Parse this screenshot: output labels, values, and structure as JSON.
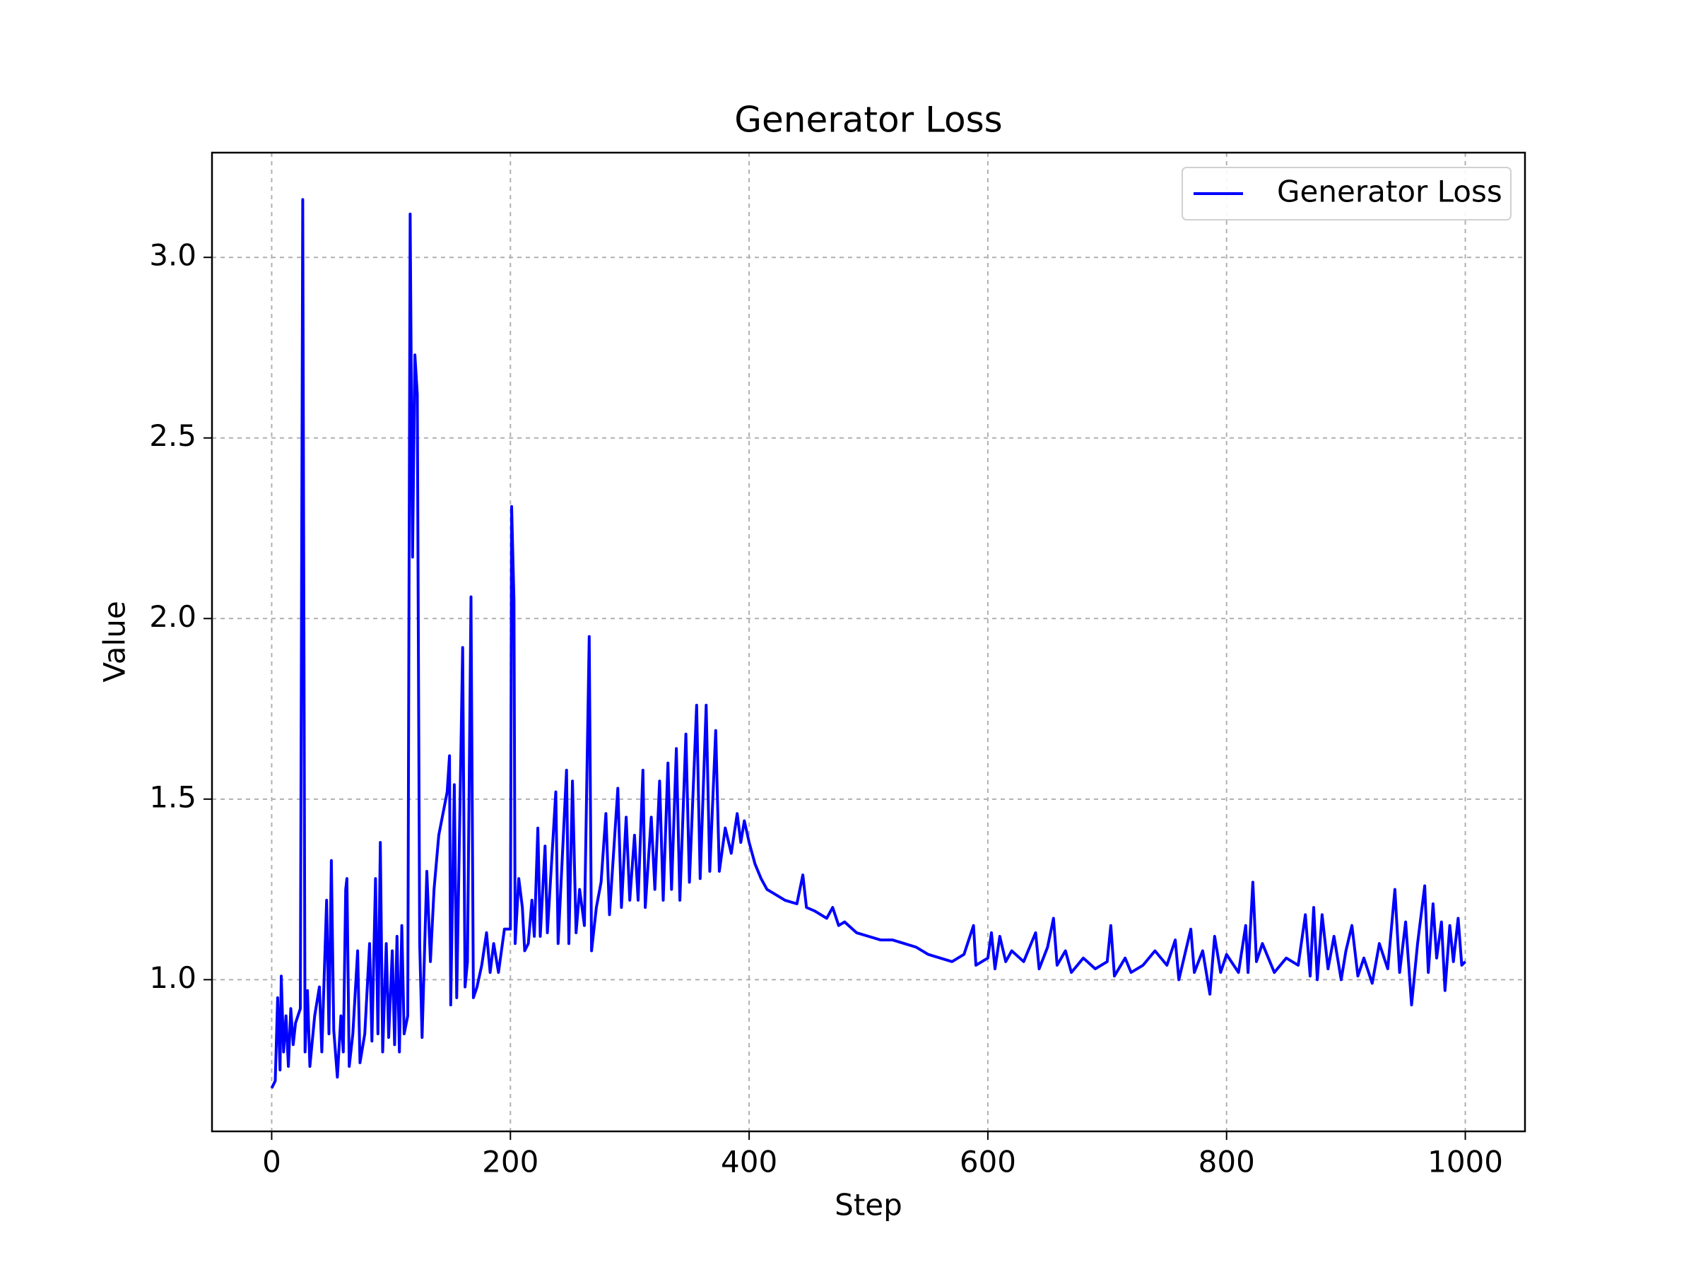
{
  "chart_data": {
    "type": "line",
    "title": "Generator Loss",
    "x_label": "Step",
    "y_label": "Value",
    "x": [
      0,
      3,
      5,
      7,
      8,
      10,
      12,
      14,
      16,
      18,
      20,
      24,
      26,
      28,
      30,
      32,
      36,
      40,
      42,
      46,
      48,
      50,
      52,
      55,
      58,
      60,
      62,
      63,
      65,
      68,
      72,
      74,
      78,
      82,
      84,
      87,
      89,
      91,
      93,
      96,
      98,
      101,
      103,
      105,
      107,
      109,
      111,
      114,
      116,
      118,
      120,
      122,
      124,
      126,
      130,
      133,
      136,
      140,
      147,
      149,
      150,
      153,
      155,
      160,
      162,
      164,
      167,
      169,
      172,
      176,
      180,
      183,
      186,
      190,
      195,
      200,
      201,
      203,
      204,
      207,
      210,
      212,
      215,
      218,
      220,
      223,
      225,
      229,
      231,
      238,
      240,
      247,
      249,
      252,
      255,
      258,
      262,
      266,
      268,
      272,
      276,
      280,
      283,
      290,
      293,
      297,
      300,
      304,
      307,
      311,
      313,
      318,
      321,
      325,
      328,
      332,
      335,
      339,
      342,
      347,
      350,
      356,
      359,
      364,
      367,
      372,
      375,
      380,
      385,
      390,
      393,
      396,
      400,
      405,
      410,
      415,
      420,
      430,
      440,
      445,
      448,
      455,
      465,
      470,
      475,
      480,
      490,
      500,
      510,
      520,
      530,
      540,
      550,
      560,
      570,
      580,
      588,
      590,
      600,
      603,
      606,
      610,
      615,
      620,
      630,
      640,
      643,
      650,
      655,
      658,
      665,
      670,
      680,
      690,
      700,
      703,
      706,
      715,
      720,
      730,
      740,
      750,
      757,
      760,
      770,
      773,
      780,
      786,
      790,
      795,
      800,
      810,
      816,
      818,
      822,
      825,
      830,
      840,
      850,
      860,
      866,
      870,
      873,
      876,
      880,
      885,
      890,
      896,
      900,
      905,
      910,
      915,
      922,
      928,
      935,
      941,
      945,
      950,
      955,
      960,
      966,
      969,
      973,
      976,
      980,
      983,
      987,
      990,
      994,
      997,
      1000
    ],
    "series": [
      {
        "name": "Generator Loss",
        "color": "#0000ff",
        "values": [
          0.7,
          0.72,
          0.95,
          0.75,
          1.01,
          0.8,
          0.9,
          0.76,
          0.92,
          0.82,
          0.88,
          0.92,
          3.16,
          0.8,
          0.97,
          0.76,
          0.9,
          0.98,
          0.8,
          1.22,
          0.85,
          1.33,
          0.86,
          0.73,
          0.9,
          0.8,
          1.25,
          1.28,
          0.76,
          0.85,
          1.08,
          0.77,
          0.85,
          1.1,
          0.83,
          1.28,
          0.85,
          1.38,
          0.8,
          1.1,
          0.84,
          1.08,
          0.82,
          1.12,
          0.8,
          1.15,
          0.85,
          0.9,
          3.12,
          2.17,
          2.73,
          2.62,
          1.1,
          0.84,
          1.3,
          1.05,
          1.25,
          1.4,
          1.52,
          1.62,
          0.93,
          1.54,
          0.95,
          1.92,
          0.98,
          1.05,
          2.06,
          0.95,
          0.98,
          1.04,
          1.13,
          1.02,
          1.1,
          1.02,
          1.14,
          1.14,
          2.31,
          2.05,
          1.1,
          1.28,
          1.2,
          1.08,
          1.1,
          1.22,
          1.12,
          1.42,
          1.12,
          1.37,
          1.13,
          1.52,
          1.1,
          1.58,
          1.1,
          1.55,
          1.13,
          1.25,
          1.15,
          1.95,
          1.08,
          1.2,
          1.27,
          1.46,
          1.18,
          1.53,
          1.2,
          1.45,
          1.22,
          1.4,
          1.22,
          1.58,
          1.2,
          1.45,
          1.25,
          1.55,
          1.22,
          1.6,
          1.25,
          1.64,
          1.22,
          1.68,
          1.27,
          1.76,
          1.28,
          1.76,
          1.3,
          1.69,
          1.3,
          1.42,
          1.35,
          1.46,
          1.38,
          1.44,
          1.38,
          1.32,
          1.28,
          1.25,
          1.24,
          1.22,
          1.21,
          1.29,
          1.2,
          1.19,
          1.17,
          1.2,
          1.15,
          1.16,
          1.13,
          1.12,
          1.11,
          1.11,
          1.1,
          1.09,
          1.07,
          1.06,
          1.05,
          1.07,
          1.15,
          1.04,
          1.06,
          1.13,
          1.03,
          1.12,
          1.05,
          1.08,
          1.05,
          1.13,
          1.03,
          1.09,
          1.17,
          1.04,
          1.08,
          1.02,
          1.06,
          1.03,
          1.05,
          1.15,
          1.01,
          1.06,
          1.02,
          1.04,
          1.08,
          1.04,
          1.11,
          1.0,
          1.14,
          1.02,
          1.08,
          0.96,
          1.12,
          1.02,
          1.07,
          1.02,
          1.15,
          1.02,
          1.27,
          1.05,
          1.1,
          1.02,
          1.06,
          1.04,
          1.18,
          1.01,
          1.2,
          1.0,
          1.18,
          1.03,
          1.12,
          1.0,
          1.08,
          1.15,
          1.01,
          1.06,
          0.99,
          1.1,
          1.03,
          1.25,
          1.02,
          1.16,
          0.93,
          1.1,
          1.26,
          1.02,
          1.21,
          1.06,
          1.16,
          0.97,
          1.15,
          1.05,
          1.17,
          1.04,
          1.05
        ]
      }
    ],
    "xlim": [
      -50,
      1050
    ],
    "ylim": [
      0.58,
      3.29
    ],
    "xticks": [
      0,
      200,
      400,
      600,
      800,
      1000
    ],
    "yticks": [
      {
        "value": 1,
        "label": "1.0"
      },
      1.5,
      {
        "value": 2,
        "label": "2.0"
      },
      2.5,
      {
        "value": 3,
        "label": "3.0"
      }
    ],
    "grid": true,
    "legend": "upper right"
  }
}
